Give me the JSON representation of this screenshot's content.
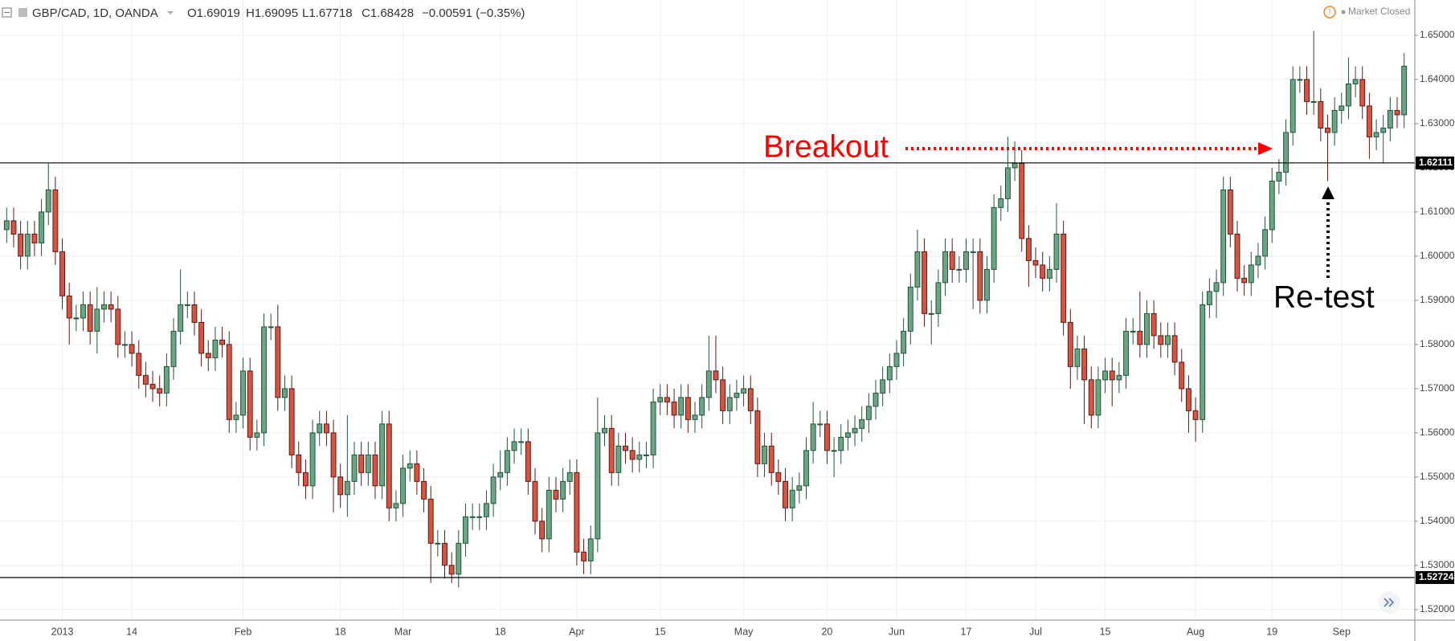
{
  "header": {
    "symbol": "GBP/CAD, 1D, OANDA",
    "open": "O1.69019",
    "high": "H1.69095",
    "low": "L1.67718",
    "close": "C1.68428",
    "change": "−0.00591 (−0.35%)",
    "status": "Market Closed"
  },
  "chart_data": {
    "type": "candlestick",
    "categories": [
      null,
      null,
      null,
      null,
      null,
      null,
      null,
      null,
      "2013",
      null,
      null,
      null,
      null,
      null,
      null,
      null,
      null,
      null,
      "14",
      null,
      null,
      null,
      null,
      null,
      null,
      null,
      null,
      null,
      null,
      null,
      null,
      null,
      null,
      null,
      "Feb",
      null,
      null,
      null,
      null,
      null,
      null,
      null,
      null,
      null,
      null,
      null,
      null,
      null,
      "18",
      null,
      null,
      null,
      null,
      null,
      null,
      null,
      null,
      "Mar",
      null,
      null,
      null,
      null,
      null,
      null,
      null,
      null,
      null,
      null,
      null,
      null,
      null,
      "18",
      null,
      null,
      null,
      null,
      null,
      null,
      null,
      null,
      null,
      null,
      "Apr",
      null,
      null,
      null,
      null,
      null,
      null,
      null,
      null,
      null,
      null,
      null,
      "15",
      null,
      null,
      null,
      null,
      null,
      null,
      null,
      null,
      null,
      null,
      null,
      "May",
      null,
      null,
      null,
      null,
      null,
      null,
      null,
      null,
      null,
      null,
      null,
      "20",
      null,
      null,
      null,
      null,
      null,
      null,
      null,
      null,
      null,
      "Jun",
      null,
      null,
      null,
      null,
      null,
      null,
      null,
      null,
      null,
      "17",
      null,
      null,
      null,
      null,
      null,
      null,
      null,
      null,
      null,
      "Jul",
      null,
      null,
      null,
      null,
      null,
      null,
      null,
      null,
      null,
      "15",
      null,
      null,
      null,
      null,
      null,
      null,
      null,
      null,
      null,
      null,
      null,
      null,
      "Aug",
      null,
      null,
      null,
      null,
      null,
      null,
      null,
      null,
      null,
      null,
      "19",
      null,
      null,
      null,
      null,
      null,
      null,
      null,
      null,
      null,
      "Sep",
      null,
      null,
      null,
      null,
      null,
      null,
      null,
      null,
      null
    ],
    "open": [
      1.606,
      1.608,
      1.605,
      1.6,
      1.605,
      1.603,
      1.61,
      1.615,
      1.601,
      1.591,
      1.586,
      1.586,
      1.589,
      1.583,
      1.588,
      1.589,
      1.588,
      1.58,
      1.58,
      1.578,
      1.573,
      1.571,
      1.57,
      1.569,
      1.575,
      1.583,
      1.589,
      1.589,
      1.585,
      1.578,
      1.577,
      1.581,
      1.58,
      1.563,
      1.564,
      1.574,
      1.559,
      1.56,
      1.584,
      1.584,
      1.568,
      1.57,
      1.555,
      1.551,
      1.548,
      1.56,
      1.562,
      1.56,
      1.55,
      1.546,
      1.549,
      1.555,
      1.551,
      1.555,
      1.548,
      1.562,
      1.543,
      1.544,
      1.552,
      1.553,
      1.549,
      1.545,
      1.535,
      1.535,
      1.53,
      1.528,
      1.535,
      1.541,
      1.541,
      1.541,
      1.544,
      1.55,
      1.551,
      1.556,
      1.558,
      1.558,
      1.549,
      1.54,
      1.536,
      1.547,
      1.545,
      1.549,
      1.551,
      1.533,
      1.531,
      1.536,
      1.56,
      1.561,
      1.551,
      1.557,
      1.556,
      1.554,
      1.555,
      1.555,
      1.567,
      1.568,
      1.567,
      1.564,
      1.568,
      1.563,
      1.564,
      1.568,
      1.574,
      1.572,
      1.565,
      1.568,
      1.569,
      1.57,
      1.565,
      1.553,
      1.557,
      1.551,
      1.549,
      1.543,
      1.547,
      1.548,
      1.556,
      1.562,
      1.562,
      1.556,
      1.556,
      1.559,
      1.56,
      1.561,
      1.563,
      1.566,
      1.569,
      1.572,
      1.575,
      1.578,
      1.583,
      1.593,
      1.601,
      1.587,
      1.587,
      1.594,
      1.601,
      1.597,
      1.597,
      1.601,
      1.601,
      1.59,
      1.597,
      1.611,
      1.613,
      1.62,
      1.621,
      1.604,
      1.599,
      1.598,
      1.595,
      1.597,
      1.605,
      1.585,
      1.575,
      1.579,
      1.572,
      1.564,
      1.572,
      1.574,
      1.572,
      1.573,
      1.583,
      1.583,
      1.58,
      1.587,
      1.582,
      1.58,
      1.582,
      1.576,
      1.57,
      1.565,
      1.563,
      1.589,
      1.592,
      1.594,
      1.615,
      1.605,
      1.595,
      1.594,
      1.598,
      1.6,
      1.606,
      1.617,
      1.619,
      1.628,
      1.64,
      1.64,
      1.635,
      1.635,
      1.629,
      1.628,
      1.633,
      1.634,
      1.639,
      1.64,
      1.634,
      1.627,
      1.628,
      1.629,
      1.633,
      1.632
    ],
    "high": [
      1.611,
      1.611,
      1.608,
      1.608,
      1.608,
      1.613,
      1.621,
      1.618,
      1.604,
      1.594,
      1.589,
      1.592,
      1.592,
      1.593,
      1.592,
      1.592,
      1.591,
      1.583,
      1.583,
      1.581,
      1.576,
      1.574,
      1.573,
      1.578,
      1.586,
      1.597,
      1.592,
      1.592,
      1.588,
      1.581,
      1.584,
      1.584,
      1.583,
      1.567,
      1.577,
      1.577,
      1.563,
      1.587,
      1.587,
      1.589,
      1.573,
      1.573,
      1.558,
      1.554,
      1.563,
      1.565,
      1.565,
      1.563,
      1.553,
      1.564,
      1.558,
      1.558,
      1.558,
      1.558,
      1.565,
      1.565,
      1.547,
      1.555,
      1.556,
      1.556,
      1.552,
      1.548,
      1.538,
      1.538,
      1.533,
      1.538,
      1.544,
      1.544,
      1.544,
      1.547,
      1.553,
      1.556,
      1.559,
      1.561,
      1.561,
      1.561,
      1.552,
      1.543,
      1.55,
      1.55,
      1.552,
      1.554,
      1.554,
      1.536,
      1.539,
      1.568,
      1.564,
      1.564,
      1.56,
      1.56,
      1.559,
      1.558,
      1.558,
      1.57,
      1.571,
      1.571,
      1.57,
      1.571,
      1.571,
      1.567,
      1.571,
      1.582,
      1.582,
      1.575,
      1.571,
      1.572,
      1.573,
      1.573,
      1.568,
      1.56,
      1.56,
      1.554,
      1.552,
      1.55,
      1.551,
      1.559,
      1.567,
      1.565,
      1.565,
      1.559,
      1.562,
      1.563,
      1.564,
      1.566,
      1.569,
      1.572,
      1.575,
      1.578,
      1.581,
      1.586,
      1.596,
      1.606,
      1.604,
      1.59,
      1.597,
      1.604,
      1.604,
      1.6,
      1.604,
      1.604,
      1.604,
      1.6,
      1.614,
      1.616,
      1.627,
      1.626,
      1.624,
      1.607,
      1.602,
      1.601,
      1.6,
      1.612,
      1.608,
      1.588,
      1.582,
      1.582,
      1.575,
      1.575,
      1.577,
      1.577,
      1.576,
      1.586,
      1.586,
      1.592,
      1.59,
      1.59,
      1.585,
      1.585,
      1.585,
      1.579,
      1.573,
      1.568,
      1.592,
      1.595,
      1.597,
      1.618,
      1.618,
      1.608,
      1.598,
      1.601,
      1.603,
      1.609,
      1.62,
      1.622,
      1.631,
      1.643,
      1.643,
      1.643,
      1.651,
      1.638,
      1.632,
      1.636,
      1.637,
      1.645,
      1.643,
      1.643,
      1.637,
      1.631,
      1.632,
      1.636,
      1.636,
      1.646
    ],
    "low": [
      1.603,
      1.602,
      1.597,
      1.597,
      1.6,
      1.6,
      1.607,
      1.598,
      1.588,
      1.58,
      1.583,
      1.583,
      1.58,
      1.578,
      1.585,
      1.585,
      1.577,
      1.577,
      1.575,
      1.57,
      1.568,
      1.567,
      1.566,
      1.566,
      1.572,
      1.58,
      1.586,
      1.582,
      1.575,
      1.574,
      1.574,
      1.577,
      1.56,
      1.56,
      1.561,
      1.556,
      1.556,
      1.557,
      1.581,
      1.565,
      1.565,
      1.552,
      1.548,
      1.545,
      1.545,
      1.557,
      1.557,
      1.542,
      1.543,
      1.541,
      1.546,
      1.548,
      1.548,
      1.545,
      1.545,
      1.54,
      1.54,
      1.541,
      1.549,
      1.546,
      1.542,
      1.526,
      1.532,
      1.527,
      1.526,
      1.525,
      1.532,
      1.538,
      1.538,
      1.538,
      1.541,
      1.547,
      1.548,
      1.553,
      1.555,
      1.546,
      1.537,
      1.533,
      1.533,
      1.542,
      1.542,
      1.546,
      1.53,
      1.528,
      1.528,
      1.533,
      1.557,
      1.548,
      1.548,
      1.553,
      1.551,
      1.551,
      1.552,
      1.552,
      1.564,
      1.564,
      1.561,
      1.561,
      1.56,
      1.56,
      1.561,
      1.565,
      1.569,
      1.562,
      1.562,
      1.565,
      1.566,
      1.562,
      1.55,
      1.55,
      1.548,
      1.546,
      1.54,
      1.54,
      1.544,
      1.545,
      1.553,
      1.559,
      1.553,
      1.55,
      1.553,
      1.556,
      1.557,
      1.558,
      1.56,
      1.563,
      1.566,
      1.569,
      1.572,
      1.575,
      1.58,
      1.59,
      1.584,
      1.58,
      1.584,
      1.591,
      1.594,
      1.594,
      1.594,
      1.588,
      1.587,
      1.587,
      1.594,
      1.608,
      1.61,
      1.617,
      1.601,
      1.593,
      1.595,
      1.592,
      1.592,
      1.594,
      1.582,
      1.57,
      1.572,
      1.562,
      1.561,
      1.561,
      1.569,
      1.566,
      1.569,
      1.57,
      1.58,
      1.577,
      1.577,
      1.579,
      1.577,
      1.577,
      1.573,
      1.567,
      1.56,
      1.558,
      1.56,
      1.586,
      1.586,
      1.591,
      1.602,
      1.592,
      1.591,
      1.591,
      1.595,
      1.597,
      1.603,
      1.614,
      1.616,
      1.625,
      1.637,
      1.632,
      1.632,
      1.626,
      1.617,
      1.625,
      1.63,
      1.631,
      1.636,
      1.631,
      1.622,
      1.624,
      1.621,
      1.626,
      1.629,
      1.629
    ],
    "close": [
      1.608,
      1.605,
      1.6,
      1.605,
      1.603,
      1.61,
      1.615,
      1.601,
      1.591,
      1.586,
      1.586,
      1.589,
      1.583,
      1.588,
      1.589,
      1.588,
      1.58,
      1.58,
      1.578,
      1.573,
      1.571,
      1.57,
      1.569,
      1.575,
      1.583,
      1.589,
      1.589,
      1.585,
      1.578,
      1.577,
      1.581,
      1.58,
      1.563,
      1.564,
      1.574,
      1.559,
      1.56,
      1.584,
      1.584,
      1.568,
      1.57,
      1.555,
      1.551,
      1.548,
      1.56,
      1.562,
      1.56,
      1.55,
      1.546,
      1.549,
      1.555,
      1.551,
      1.555,
      1.548,
      1.562,
      1.543,
      1.544,
      1.552,
      1.553,
      1.549,
      1.545,
      1.535,
      1.535,
      1.53,
      1.528,
      1.535,
      1.541,
      1.541,
      1.541,
      1.544,
      1.55,
      1.551,
      1.556,
      1.558,
      1.558,
      1.549,
      1.54,
      1.536,
      1.547,
      1.545,
      1.549,
      1.551,
      1.533,
      1.531,
      1.536,
      1.56,
      1.561,
      1.551,
      1.557,
      1.556,
      1.554,
      1.555,
      1.555,
      1.567,
      1.568,
      1.567,
      1.564,
      1.568,
      1.563,
      1.564,
      1.568,
      1.574,
      1.572,
      1.565,
      1.568,
      1.569,
      1.57,
      1.565,
      1.553,
      1.557,
      1.551,
      1.549,
      1.543,
      1.547,
      1.548,
      1.556,
      1.562,
      1.562,
      1.556,
      1.556,
      1.559,
      1.56,
      1.561,
      1.563,
      1.566,
      1.569,
      1.572,
      1.575,
      1.578,
      1.583,
      1.593,
      1.601,
      1.587,
      1.587,
      1.594,
      1.601,
      1.597,
      1.597,
      1.601,
      1.601,
      1.59,
      1.597,
      1.611,
      1.613,
      1.62,
      1.621,
      1.604,
      1.599,
      1.598,
      1.595,
      1.597,
      1.605,
      1.585,
      1.575,
      1.579,
      1.572,
      1.564,
      1.572,
      1.574,
      1.572,
      1.573,
      1.583,
      1.583,
      1.58,
      1.587,
      1.582,
      1.58,
      1.582,
      1.576,
      1.57,
      1.565,
      1.563,
      1.589,
      1.592,
      1.594,
      1.615,
      1.605,
      1.595,
      1.594,
      1.598,
      1.6,
      1.606,
      1.617,
      1.619,
      1.628,
      1.64,
      1.64,
      1.635,
      1.635,
      1.629,
      1.628,
      1.633,
      1.634,
      1.639,
      1.64,
      1.634,
      1.627,
      1.628,
      1.629,
      1.633,
      1.632,
      1.643
    ],
    "ylim": [
      1.5176,
      1.6529
    ],
    "yticks": [
      {
        "value": 1.52,
        "label": "1.52000"
      },
      {
        "value": 1.53,
        "label": "1.53000"
      },
      {
        "value": 1.54,
        "label": "1.54000"
      },
      {
        "value": 1.55,
        "label": "1.55000"
      },
      {
        "value": 1.56,
        "label": "1.56000"
      },
      {
        "value": 1.57,
        "label": "1.57000"
      },
      {
        "value": 1.58,
        "label": "1.58000"
      },
      {
        "value": 1.59,
        "label": "1.59000"
      },
      {
        "value": 1.6,
        "label": "1.60000"
      },
      {
        "value": 1.61,
        "label": "1.61000"
      },
      {
        "value": 1.62,
        "label": "1.62000"
      },
      {
        "value": 1.63,
        "label": "1.63000"
      },
      {
        "value": 1.64,
        "label": "1.64000"
      },
      {
        "value": 1.65,
        "label": "1.65000"
      }
    ],
    "levels": [
      {
        "value": 1.62111,
        "label": "1.62111"
      },
      {
        "value": 1.52724,
        "label": "1.52724"
      }
    ],
    "annotations": [
      "Breakout",
      "Re-test"
    ],
    "colors": {
      "up": "#6ba583",
      "up_edge": "#225437",
      "down": "#d75442",
      "down_edge": "#5b1a13"
    },
    "grid": true
  }
}
